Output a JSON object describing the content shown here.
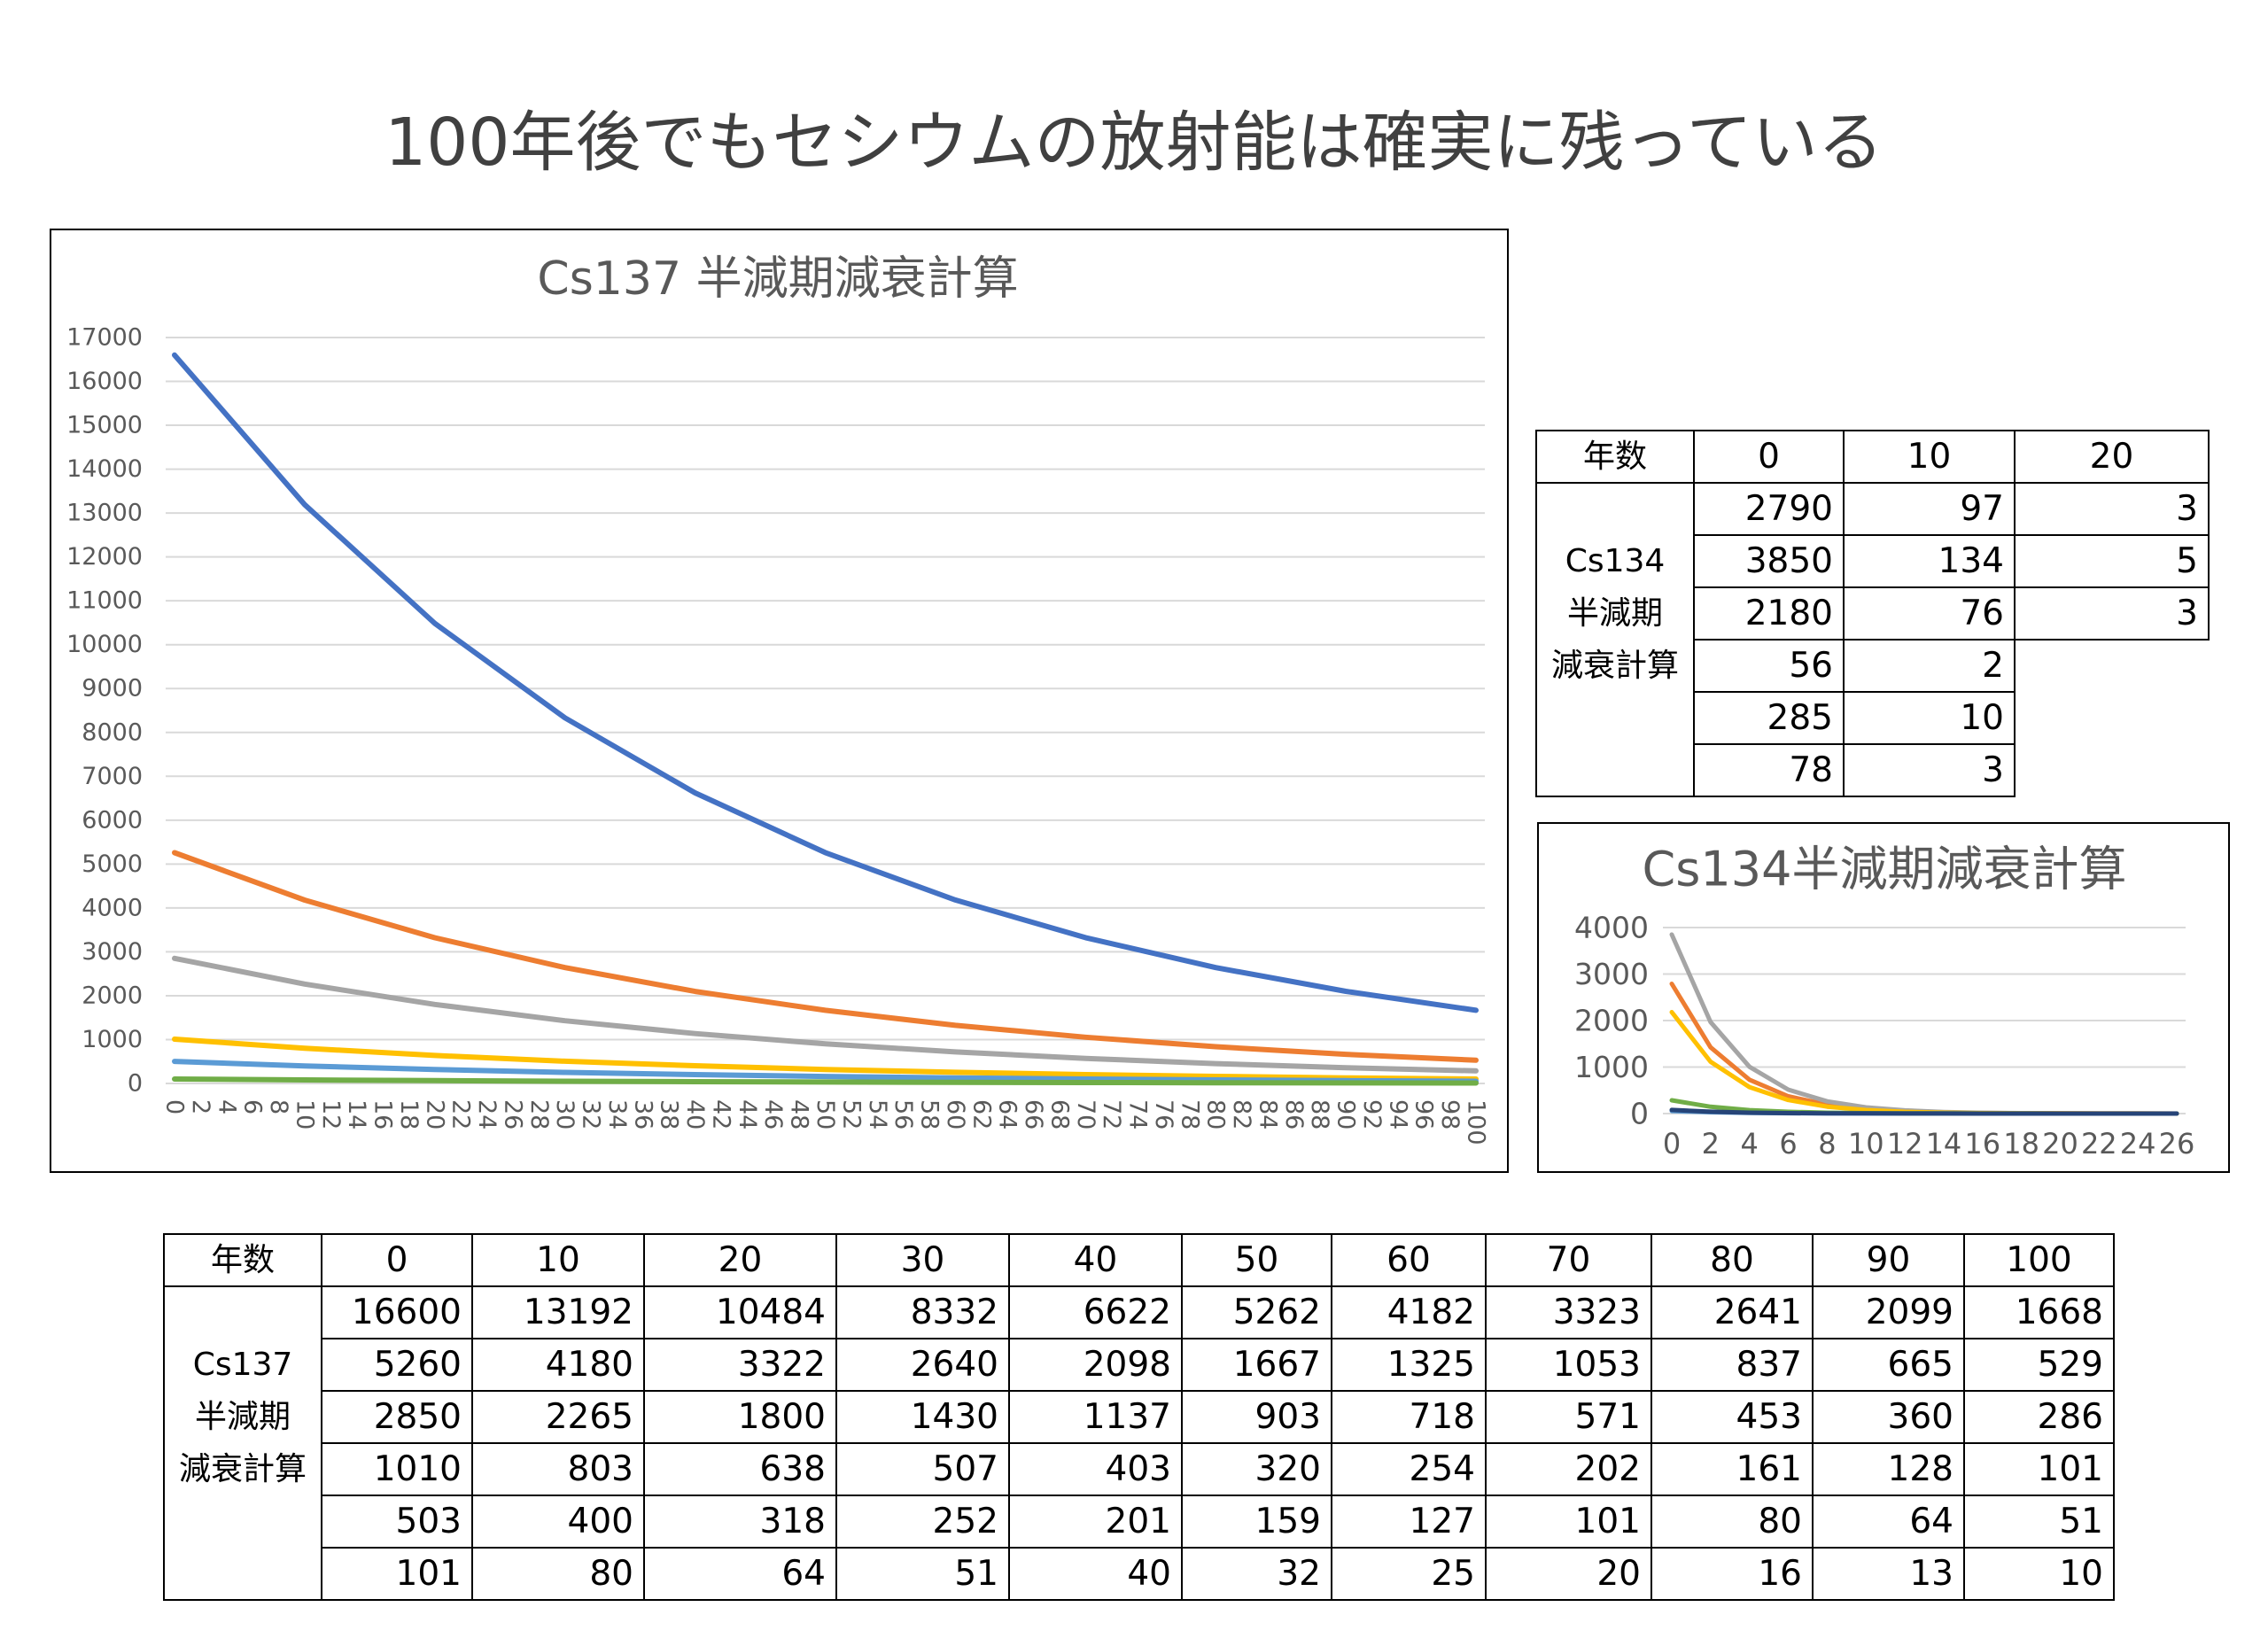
{
  "title": "100年後でもセシウムの放射能は確実に残っている",
  "chart_data": [
    {
      "type": "line",
      "title": "Cs137 半減期減衰計算",
      "x": [
        0,
        10,
        20,
        30,
        40,
        50,
        60,
        70,
        80,
        90,
        100
      ],
      "xlim": [
        0,
        100
      ],
      "xticks": [
        0,
        2,
        4,
        6,
        8,
        10,
        12,
        14,
        16,
        18,
        20,
        22,
        24,
        26,
        28,
        30,
        32,
        34,
        36,
        38,
        40,
        42,
        44,
        46,
        48,
        50,
        52,
        54,
        56,
        58,
        60,
        62,
        64,
        66,
        68,
        70,
        72,
        74,
        76,
        78,
        80,
        82,
        84,
        86,
        88,
        90,
        92,
        94,
        96,
        98,
        100
      ],
      "ylim": [
        0,
        17000
      ],
      "yticks": [
        0,
        1000,
        2000,
        3000,
        4000,
        5000,
        6000,
        7000,
        8000,
        9000,
        10000,
        11000,
        12000,
        13000,
        14000,
        15000,
        16000,
        17000
      ],
      "grid": true,
      "series": [
        {
          "color": "#4472c4",
          "values": [
            16600,
            13192,
            10484,
            8332,
            6622,
            5262,
            4182,
            3323,
            2641,
            2099,
            1668
          ]
        },
        {
          "color": "#ed7d31",
          "values": [
            5260,
            4180,
            3322,
            2640,
            2098,
            1667,
            1325,
            1053,
            837,
            665,
            529
          ]
        },
        {
          "color": "#a5a5a5",
          "values": [
            2850,
            2265,
            1800,
            1430,
            1137,
            903,
            718,
            571,
            453,
            360,
            286
          ]
        },
        {
          "color": "#ffc000",
          "values": [
            1010,
            803,
            638,
            507,
            403,
            320,
            254,
            202,
            161,
            128,
            101
          ]
        },
        {
          "color": "#5b9bd5",
          "values": [
            503,
            400,
            318,
            252,
            201,
            159,
            127,
            101,
            80,
            64,
            51
          ]
        },
        {
          "color": "#70ad47",
          "values": [
            101,
            80,
            64,
            51,
            40,
            32,
            25,
            20,
            16,
            13,
            10
          ]
        }
      ]
    },
    {
      "type": "line",
      "title": "Cs134半減期減衰計算",
      "x": [
        0,
        2,
        4,
        6,
        8,
        10,
        12,
        14,
        16,
        18,
        20,
        22,
        24,
        26
      ],
      "xlim": [
        0,
        26
      ],
      "xticks": [
        0,
        2,
        4,
        6,
        8,
        10,
        12,
        14,
        16,
        18,
        20,
        22,
        24,
        26
      ],
      "ylim": [
        0,
        4000
      ],
      "yticks": [
        0,
        1000,
        2000,
        3000,
        4000
      ],
      "grid": true,
      "series": [
        {
          "color": "#ed7d31",
          "values": [
            2790,
            1425,
            728,
            372,
            190,
            97,
            50,
            25,
            13,
            7,
            3,
            2,
            1,
            0
          ]
        },
        {
          "color": "#a5a5a5",
          "values": [
            3850,
            1967,
            1005,
            514,
            262,
            134,
            69,
            35,
            18,
            9,
            5,
            2,
            1,
            1
          ]
        },
        {
          "color": "#ffc000",
          "values": [
            2180,
            1114,
            569,
            291,
            148,
            76,
            39,
            20,
            10,
            5,
            3,
            1,
            1,
            0
          ]
        },
        {
          "color": "#5b9bd5",
          "values": [
            56,
            29,
            15,
            7,
            4,
            2,
            1,
            1,
            0,
            0,
            0,
            0,
            0,
            0
          ]
        },
        {
          "color": "#70ad47",
          "values": [
            285,
            146,
            74,
            38,
            19,
            10,
            5,
            3,
            1,
            1,
            0,
            0,
            0,
            0
          ]
        },
        {
          "color": "#264478",
          "values": [
            78,
            40,
            20,
            10,
            5,
            3,
            1,
            1,
            0,
            0,
            0,
            0,
            0,
            0
          ]
        }
      ]
    }
  ],
  "table_cs134": {
    "corner": "年数",
    "years": [
      0,
      10,
      20
    ],
    "labels": [
      "Cs134",
      "半減期",
      "減衰計算"
    ],
    "rows": [
      [
        2790,
        97,
        3
      ],
      [
        3850,
        134,
        5
      ],
      [
        2180,
        76,
        3
      ],
      [
        56,
        2
      ],
      [
        285,
        10
      ],
      [
        78,
        3
      ]
    ]
  },
  "table_cs137": {
    "corner": "年数",
    "years": [
      0,
      10,
      20,
      30,
      40,
      50,
      60,
      70,
      80,
      90,
      100
    ],
    "labels": [
      "Cs137",
      "半減期",
      "減衰計算"
    ],
    "rows": [
      [
        16600,
        13192,
        10484,
        8332,
        6622,
        5262,
        4182,
        3323,
        2641,
        2099,
        1668
      ],
      [
        5260,
        4180,
        3322,
        2640,
        2098,
        1667,
        1325,
        1053,
        837,
        665,
        529
      ],
      [
        2850,
        2265,
        1800,
        1430,
        1137,
        903,
        718,
        571,
        453,
        360,
        286
      ],
      [
        1010,
        803,
        638,
        507,
        403,
        320,
        254,
        202,
        161,
        128,
        101
      ],
      [
        503,
        400,
        318,
        252,
        201,
        159,
        127,
        101,
        80,
        64,
        51
      ],
      [
        101,
        80,
        64,
        51,
        40,
        32,
        25,
        20,
        16,
        13,
        10
      ]
    ]
  }
}
